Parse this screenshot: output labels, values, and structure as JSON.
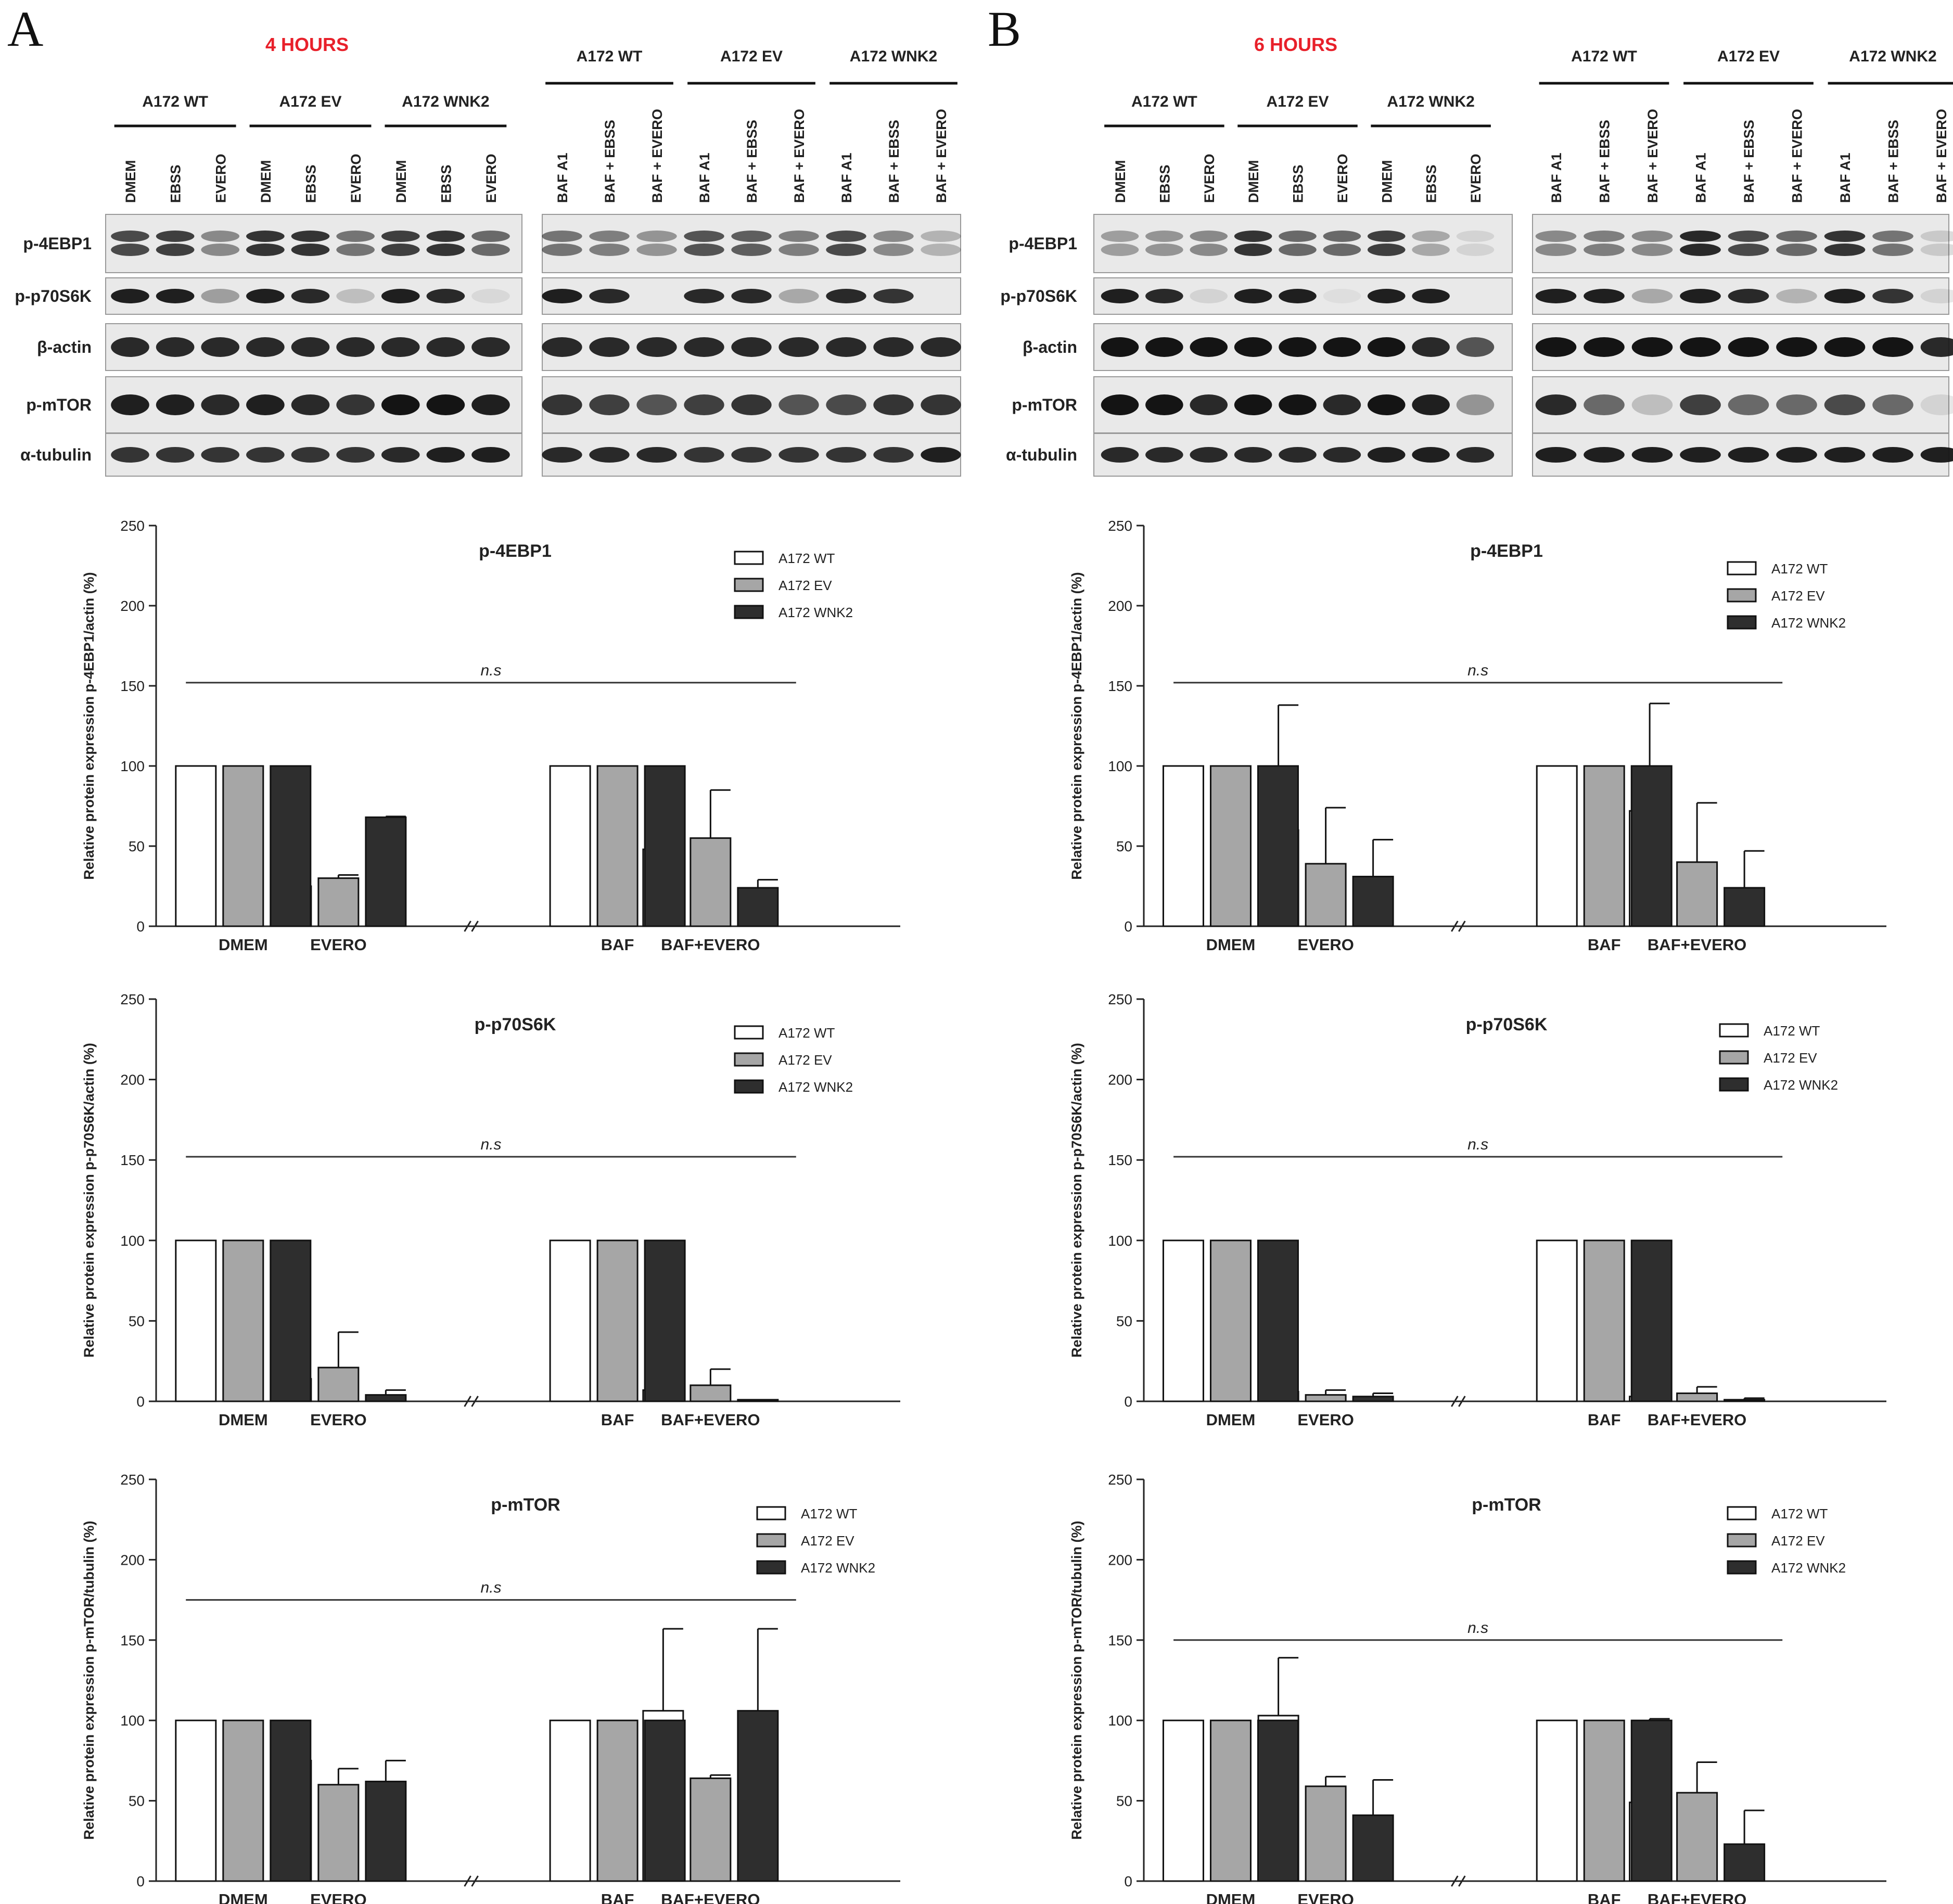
{
  "panels": [
    {
      "letter": "A",
      "time_label": "4 HOURS",
      "blot_left": {
        "groups": [
          "A172 WT",
          "A172 EV",
          "A172 WNK2"
        ],
        "lanes": [
          "DMEM",
          "EBSS",
          "EVERO",
          "DMEM",
          "EBSS",
          "EVERO",
          "DMEM",
          "EBSS",
          "EVERO"
        ]
      },
      "blot_right": {
        "groups": [
          "A172 WT",
          "A172 EV",
          "A172 WNK2"
        ],
        "lanes": [
          "BAF A1",
          "BAF + EBSS",
          "BAF + EVERO",
          "BAF A1",
          "BAF + EBSS",
          "BAF + EVERO",
          "BAF A1",
          "BAF + EBSS",
          "BAF + EVERO"
        ]
      },
      "row_labels": [
        "p-4EBP1",
        "p-p70S6K",
        "β-actin",
        "p-mTOR",
        "α-tubulin"
      ]
    },
    {
      "letter": "B",
      "time_label": "6 HOURS",
      "blot_left": {
        "groups": [
          "A172 WT",
          "A172 EV",
          "A172 WNK2"
        ],
        "lanes": [
          "DMEM",
          "EBSS",
          "EVERO",
          "DMEM",
          "EBSS",
          "EVERO",
          "DMEM",
          "EBSS",
          "EVERO"
        ]
      },
      "blot_right": {
        "groups": [
          "A172 WT",
          "A172 EV",
          "A172 WNK2"
        ],
        "lanes": [
          "BAF A1",
          "BAF + EBSS",
          "BAF + EVERO",
          "BAF A1",
          "BAF + EBSS",
          "BAF + EVERO",
          "BAF A1",
          "BAF + EBSS",
          "BAF + EVERO"
        ]
      },
      "row_labels": [
        "p-4EBP1",
        "p-p70S6K",
        "β-actin",
        "p-mTOR",
        "α-tubulin"
      ]
    }
  ],
  "chart_data": [
    {
      "type": "bar",
      "title": "p-4EBP1",
      "panel": "A",
      "ylabel": "Relative protein expression p-4EBP1/actin (%)",
      "ylim": [
        0,
        250
      ],
      "yticks": [
        0,
        50,
        100,
        150,
        200,
        250
      ],
      "categories": [
        "DMEM",
        "EVERO",
        "BAF",
        "BAF+EVERO"
      ],
      "series": [
        {
          "name": "A172 WT",
          "color": "#ffffff",
          "values": [
            100,
            25,
            100,
            48
          ],
          "errors": [
            0,
            19,
            0,
            40
          ]
        },
        {
          "name": "A172 EV",
          "color": "#a6a6a6",
          "values": [
            100,
            30,
            100,
            55
          ],
          "errors": [
            0,
            2,
            0,
            30
          ]
        },
        {
          "name": "A172 WNK2",
          "color": "#2e2e2e",
          "values": [
            100,
            68,
            100,
            24
          ],
          "errors": [
            0,
            0.5,
            0,
            5
          ]
        }
      ],
      "significance": {
        "label": "n.s",
        "level": 152
      }
    },
    {
      "type": "bar",
      "title": "p-4EBP1",
      "panel": "B",
      "ylabel": "Relative protein expression p-4EBP1/actin (%)",
      "ylim": [
        0,
        250
      ],
      "yticks": [
        0,
        50,
        100,
        150,
        200,
        250
      ],
      "categories": [
        "DMEM",
        "EVERO",
        "BAF",
        "BAF+EVERO"
      ],
      "series": [
        {
          "name": "A172 WT",
          "color": "#ffffff",
          "values": [
            100,
            60,
            100,
            72
          ],
          "errors": [
            0,
            78,
            0,
            67
          ]
        },
        {
          "name": "A172 EV",
          "color": "#a6a6a6",
          "values": [
            100,
            39,
            100,
            40
          ],
          "errors": [
            0,
            35,
            0,
            37
          ]
        },
        {
          "name": "A172 WNK2",
          "color": "#2e2e2e",
          "values": [
            100,
            31,
            100,
            24
          ],
          "errors": [
            0,
            23,
            0,
            23
          ]
        }
      ],
      "significance": {
        "label": "n.s",
        "level": 152
      }
    },
    {
      "type": "bar",
      "title": "p-p70S6K",
      "panel": "A",
      "ylabel": "Relative protein expression p-p70S6K/actin (%)",
      "ylim": [
        0,
        250
      ],
      "yticks": [
        0,
        50,
        100,
        150,
        200,
        250
      ],
      "categories": [
        "DMEM",
        "EVERO",
        "BAF",
        "BAF+EVERO"
      ],
      "series": [
        {
          "name": "A172 WT",
          "color": "#ffffff",
          "values": [
            100,
            14,
            100,
            7
          ],
          "errors": [
            0,
            15,
            0,
            7
          ]
        },
        {
          "name": "A172 EV",
          "color": "#a6a6a6",
          "values": [
            100,
            21,
            100,
            10
          ],
          "errors": [
            0,
            22,
            0,
            10
          ]
        },
        {
          "name": "A172 WNK2",
          "color": "#2e2e2e",
          "values": [
            100,
            4,
            100,
            1
          ],
          "errors": [
            0,
            3,
            0,
            0
          ]
        }
      ],
      "significance": {
        "label": "n.s",
        "level": 152
      }
    },
    {
      "type": "bar",
      "title": "p-p70S6K",
      "panel": "B",
      "ylabel": "Relative protein expression  p-p70S6K/actin (%)",
      "ylim": [
        0,
        250
      ],
      "yticks": [
        0,
        50,
        100,
        150,
        200,
        250
      ],
      "categories": [
        "DMEM",
        "EVERO",
        "BAF",
        "BAF+EVERO"
      ],
      "series": [
        {
          "name": "A172 WT",
          "color": "#ffffff",
          "values": [
            100,
            6,
            100,
            3
          ],
          "errors": [
            0,
            2,
            0,
            1
          ]
        },
        {
          "name": "A172 EV",
          "color": "#a6a6a6",
          "values": [
            100,
            4,
            100,
            5
          ],
          "errors": [
            0,
            3,
            0,
            4
          ]
        },
        {
          "name": "A172 WNK2",
          "color": "#2e2e2e",
          "values": [
            100,
            3,
            100,
            1
          ],
          "errors": [
            0,
            2,
            0,
            1
          ]
        }
      ],
      "significance": {
        "label": "n.s",
        "level": 152
      }
    },
    {
      "type": "bar",
      "title": "p-mTOR",
      "panel": "A",
      "ylabel": "Relative protein expression p-mTOR/tubulin (%)",
      "ylim": [
        0,
        250
      ],
      "yticks": [
        0,
        50,
        100,
        150,
        200,
        250
      ],
      "categories": [
        "DMEM",
        "EVERO",
        "BAF",
        "BAF+EVERO"
      ],
      "series": [
        {
          "name": "A172 WT",
          "color": "#ffffff",
          "values": [
            100,
            75,
            100,
            106
          ],
          "errors": [
            0,
            4,
            0,
            51
          ]
        },
        {
          "name": "A172 EV",
          "color": "#a6a6a6",
          "values": [
            100,
            60,
            100,
            64
          ],
          "errors": [
            0,
            10,
            0,
            2
          ]
        },
        {
          "name": "A172 WNK2",
          "color": "#2e2e2e",
          "values": [
            100,
            62,
            100,
            106
          ],
          "errors": [
            0,
            13,
            0,
            51
          ]
        }
      ],
      "significance": {
        "label": "n.s",
        "level": 175
      }
    },
    {
      "type": "bar",
      "title": "p-mTOR",
      "panel": "B",
      "ylabel": "Relative protein expression p-mTOR/tubulin (%)",
      "ylim": [
        0,
        250
      ],
      "yticks": [
        0,
        50,
        100,
        150,
        200,
        250
      ],
      "categories": [
        "DMEM",
        "EVERO",
        "BAF",
        "BAF+EVERO"
      ],
      "series": [
        {
          "name": "A172 WT",
          "color": "#ffffff",
          "values": [
            100,
            103,
            100,
            49
          ],
          "errors": [
            0,
            36,
            0,
            52
          ]
        },
        {
          "name": "A172 EV",
          "color": "#a6a6a6",
          "values": [
            100,
            59,
            100,
            55
          ],
          "errors": [
            0,
            6,
            0,
            19
          ]
        },
        {
          "name": "A172 WNK2",
          "color": "#2e2e2e",
          "values": [
            100,
            41,
            100,
            23
          ],
          "errors": [
            0,
            22,
            0,
            21
          ]
        }
      ],
      "significance": {
        "label": "n.s",
        "level": 150
      }
    }
  ]
}
